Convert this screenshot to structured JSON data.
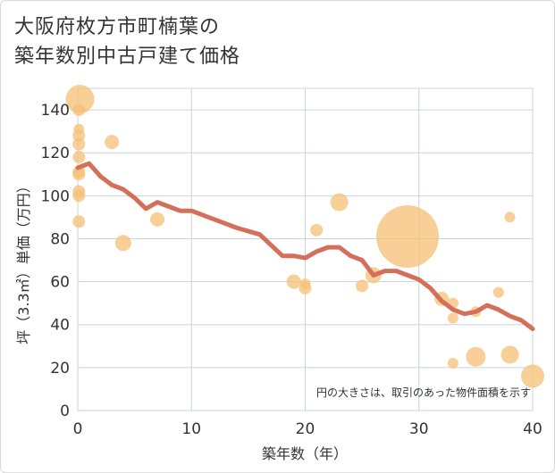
{
  "title_line1": "大阪府枚方市町楠葉の",
  "title_line2": "築年数別中古戸建て価格",
  "chart_data": {
    "type": "scatter",
    "title": "大阪府枚方市町楠葉の築年数別中古戸建て価格",
    "xlabel": "築年数（年）",
    "ylabel": "坪（3.3㎡）単価（万円）",
    "xlim": [
      0,
      40
    ],
    "ylim": [
      0,
      150
    ],
    "xticks": [
      0,
      10,
      20,
      30,
      40
    ],
    "yticks": [
      0,
      20,
      40,
      60,
      80,
      100,
      120,
      140
    ],
    "grid": true,
    "note": "円の大きさは、取引のあった物件面積を示す",
    "colors": {
      "bubble": "#f5c27a",
      "trend": "#d4705a",
      "grid": "#c8d4e0"
    },
    "points": [
      {
        "x": 0.2,
        "y": 145,
        "size": 16
      },
      {
        "x": 0.1,
        "y": 140,
        "size": 7
      },
      {
        "x": 0.1,
        "y": 131,
        "size": 6
      },
      {
        "x": 0.1,
        "y": 128,
        "size": 7
      },
      {
        "x": 0.1,
        "y": 124,
        "size": 7
      },
      {
        "x": 0.1,
        "y": 118,
        "size": 7
      },
      {
        "x": 0.1,
        "y": 111,
        "size": 7
      },
      {
        "x": 0.1,
        "y": 110,
        "size": 7
      },
      {
        "x": 0.1,
        "y": 102,
        "size": 7
      },
      {
        "x": 0.1,
        "y": 100,
        "size": 7
      },
      {
        "x": 0.1,
        "y": 88,
        "size": 7
      },
      {
        "x": 3,
        "y": 125,
        "size": 8
      },
      {
        "x": 4,
        "y": 78,
        "size": 9
      },
      {
        "x": 7,
        "y": 89,
        "size": 8
      },
      {
        "x": 19,
        "y": 60,
        "size": 8
      },
      {
        "x": 20,
        "y": 59,
        "size": 6
      },
      {
        "x": 20,
        "y": 57,
        "size": 7
      },
      {
        "x": 21,
        "y": 84,
        "size": 7
      },
      {
        "x": 23,
        "y": 97,
        "size": 10
      },
      {
        "x": 25,
        "y": 58,
        "size": 7
      },
      {
        "x": 26,
        "y": 63,
        "size": 9
      },
      {
        "x": 29,
        "y": 81,
        "size": 35
      },
      {
        "x": 32,
        "y": 52,
        "size": 8
      },
      {
        "x": 33,
        "y": 50,
        "size": 6
      },
      {
        "x": 33,
        "y": 43,
        "size": 6
      },
      {
        "x": 33,
        "y": 22,
        "size": 6
      },
      {
        "x": 35,
        "y": 46,
        "size": 6
      },
      {
        "x": 35,
        "y": 25,
        "size": 11
      },
      {
        "x": 37,
        "y": 55,
        "size": 6
      },
      {
        "x": 38,
        "y": 90,
        "size": 6
      },
      {
        "x": 38,
        "y": 26,
        "size": 10
      },
      {
        "x": 40,
        "y": 16,
        "size": 13
      }
    ],
    "trend": [
      {
        "x": 0,
        "y": 113
      },
      {
        "x": 1,
        "y": 115
      },
      {
        "x": 2,
        "y": 109
      },
      {
        "x": 3,
        "y": 105
      },
      {
        "x": 4,
        "y": 103
      },
      {
        "x": 5,
        "y": 99
      },
      {
        "x": 6,
        "y": 94
      },
      {
        "x": 7,
        "y": 97
      },
      {
        "x": 8,
        "y": 95
      },
      {
        "x": 9,
        "y": 93
      },
      {
        "x": 10,
        "y": 93
      },
      {
        "x": 12,
        "y": 89
      },
      {
        "x": 14,
        "y": 85
      },
      {
        "x": 16,
        "y": 82
      },
      {
        "x": 17,
        "y": 77
      },
      {
        "x": 18,
        "y": 72
      },
      {
        "x": 19,
        "y": 72
      },
      {
        "x": 20,
        "y": 71
      },
      {
        "x": 21,
        "y": 74
      },
      {
        "x": 22,
        "y": 76
      },
      {
        "x": 23,
        "y": 76
      },
      {
        "x": 24,
        "y": 72
      },
      {
        "x": 25,
        "y": 70
      },
      {
        "x": 26,
        "y": 63
      },
      {
        "x": 27,
        "y": 65
      },
      {
        "x": 28,
        "y": 65
      },
      {
        "x": 29,
        "y": 63
      },
      {
        "x": 30,
        "y": 61
      },
      {
        "x": 31,
        "y": 57
      },
      {
        "x": 32,
        "y": 51
      },
      {
        "x": 33,
        "y": 47
      },
      {
        "x": 34,
        "y": 45
      },
      {
        "x": 35,
        "y": 46
      },
      {
        "x": 36,
        "y": 49
      },
      {
        "x": 37,
        "y": 47
      },
      {
        "x": 38,
        "y": 44
      },
      {
        "x": 39,
        "y": 42
      },
      {
        "x": 40,
        "y": 38
      }
    ]
  }
}
